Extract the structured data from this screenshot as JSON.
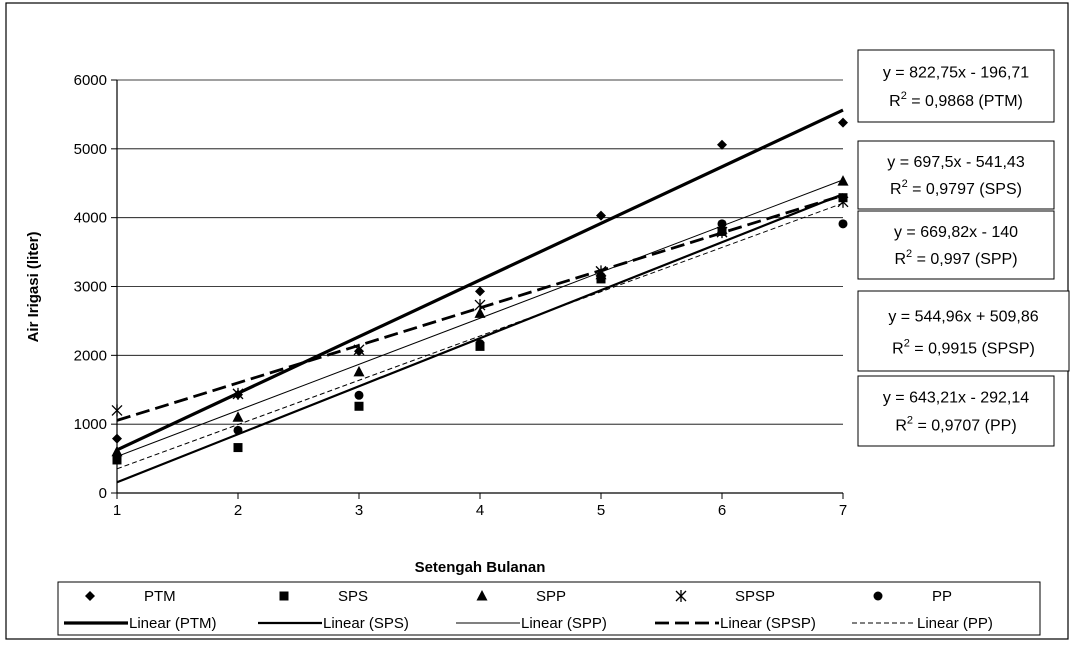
{
  "chart_data": {
    "type": "scatter",
    "xlabel": "Setengah Bulanan",
    "ylabel": "Air Irigasi (liter)",
    "xlim": [
      1,
      7
    ],
    "ylim": [
      0,
      6000
    ],
    "x_ticks": [
      "1",
      "2",
      "3",
      "4",
      "5",
      "6",
      "7"
    ],
    "y_ticks": [
      "0",
      "1000",
      "2000",
      "3000",
      "4000",
      "5000",
      "6000"
    ],
    "grid": "horizontal",
    "legend_position": "bottom",
    "series": [
      {
        "name": "PTM",
        "marker": "diamond",
        "x": [
          1,
          2,
          3,
          4,
          5,
          6,
          7
        ],
        "y": [
          790,
          1430,
          2060,
          2930,
          4030,
          5060,
          5380
        ]
      },
      {
        "name": "SPS",
        "marker": "square",
        "x": [
          1,
          2,
          3,
          4,
          5,
          6,
          7
        ],
        "y": [
          480,
          660,
          1260,
          2130,
          3110,
          3800,
          4290
        ]
      },
      {
        "name": "SPP",
        "marker": "triangle",
        "x": [
          1,
          2,
          3,
          4,
          5,
          6,
          7
        ],
        "y": [
          600,
          1100,
          1760,
          2610,
          3170,
          3830,
          4530
        ]
      },
      {
        "name": "SPSP",
        "marker": "star",
        "x": [
          1,
          2,
          3,
          4,
          5,
          6,
          7
        ],
        "y": [
          1200,
          1440,
          2080,
          2730,
          3220,
          3790,
          4230
        ]
      },
      {
        "name": "PP",
        "marker": "circle",
        "x": [
          1,
          2,
          3,
          4,
          5,
          6,
          7
        ],
        "y": [
          530,
          910,
          1420,
          2170,
          3150,
          3910,
          3910
        ]
      }
    ],
    "trendlines": [
      {
        "name": "Linear (PTM)",
        "slope": 822.75,
        "intercept": -196.71,
        "style": "thick"
      },
      {
        "name": "Linear (SPS)",
        "slope": 697.5,
        "intercept": -541.43,
        "style": "medium"
      },
      {
        "name": "Linear (SPP)",
        "slope": 669.82,
        "intercept": -140,
        "style": "thin"
      },
      {
        "name": "Linear (SPSP)",
        "slope": 544.96,
        "intercept": 509.86,
        "style": "dashed-thick"
      },
      {
        "name": "Linear (PP)",
        "slope": 643.21,
        "intercept": -292.14,
        "style": "dashed-thin"
      }
    ],
    "equations": [
      {
        "eq": "y = 822,75x - 196,71",
        "r2_prefix": "R",
        "r2_sup": "2",
        "r2_value": " = 0,9868 (PTM)"
      },
      {
        "eq": "y = 697,5x - 541,43",
        "r2_prefix": "R",
        "r2_sup": "2",
        "r2_value": " = 0,9797 (SPS)"
      },
      {
        "eq": "y = 669,82x - 140",
        "r2_prefix": "R",
        "r2_sup": "2",
        "r2_value": " = 0,997 (SPP)"
      },
      {
        "eq": "y = 544,96x + 509,86",
        "r2_prefix": "R",
        "r2_sup": "2",
        "r2_value": " = 0,9915 (SPSP)"
      },
      {
        "eq": "y = 643,21x - 292,14",
        "r2_prefix": "R",
        "r2_sup": "2",
        "r2_value": " = 0,9707 (PP)"
      }
    ]
  }
}
